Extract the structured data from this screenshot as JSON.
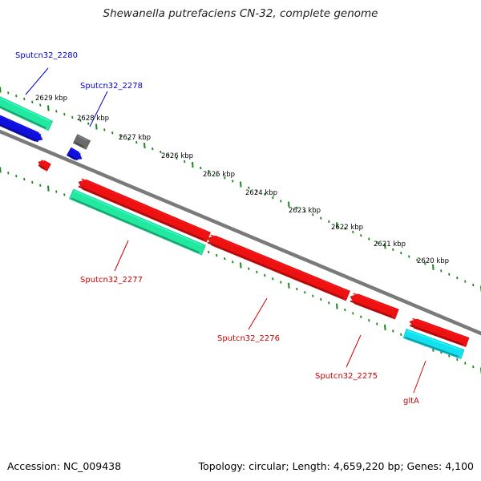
{
  "title": "Shewanella putrefaciens CN-32, complete genome",
  "accession": "Accession: NC_009438",
  "summary": "Topology: circular; Length: 4,659,220 bp; Genes: 4,100",
  "colors": {
    "backbone": "#7a7a7a",
    "tick": "#1a8a1a",
    "blue_feature": "#1010dd",
    "green_feature": "#22e8a0",
    "cyan_feature": "#14e0f0",
    "gray_feature": "#6a6a6a",
    "red_feature": "#ee1111",
    "blue_label": "#0000cc",
    "red_label": "#cc0000"
  },
  "ruler_labels": [
    "2629 kbp",
    "2628 kbp",
    "2627 kbp",
    "2626 kbp",
    "2625 kbp",
    "2624 kbp",
    "2623 kbp",
    "2622 kbp",
    "2621 kbp",
    "2620 kbp"
  ],
  "gene_labels": [
    {
      "text": "Sputcn32_2280",
      "color": "blue_label"
    },
    {
      "text": "Sputcn32_2278",
      "color": "blue_label"
    },
    {
      "text": "Sputcn32_2277",
      "color": "red_label"
    },
    {
      "text": "Sputcn32_2276",
      "color": "red_label"
    },
    {
      "text": "Sputcn32_2275",
      "color": "red_label"
    },
    {
      "text": "gltA",
      "color": "red_label"
    }
  ]
}
